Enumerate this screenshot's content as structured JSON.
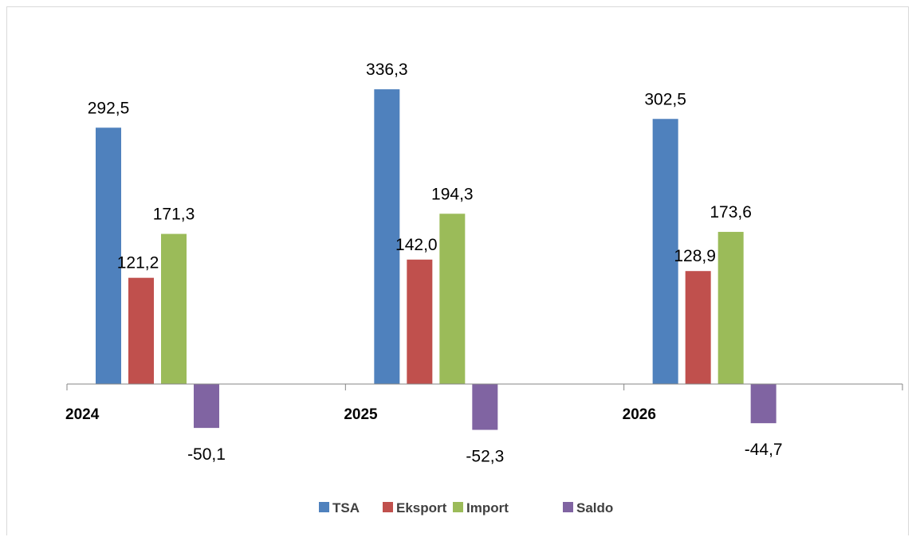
{
  "chart_data": {
    "type": "bar",
    "categories": [
      "2024",
      "2025",
      "2026"
    ],
    "series": [
      {
        "name": "TSA",
        "color": "#4f81bd",
        "values": [
          292.5,
          336.3,
          302.5
        ],
        "labels": [
          "292,5",
          "336,3",
          "302,5"
        ]
      },
      {
        "name": "Eksport",
        "color": "#c0504d",
        "values": [
          121.2,
          142.0,
          128.9
        ],
        "labels": [
          "121,2",
          "142,0",
          "128,9"
        ]
      },
      {
        "name": "Import",
        "color": "#9bbb59",
        "values": [
          171.3,
          194.3,
          173.6
        ],
        "labels": [
          "171,3",
          "194,3",
          "173,6"
        ]
      },
      {
        "name": "Saldo",
        "color": "#8064a2",
        "values": [
          -50.1,
          -52.3,
          -44.7
        ],
        "labels": [
          "-50,1",
          "-52,3",
          "-44,7"
        ]
      }
    ],
    "title": "",
    "xlabel": "",
    "ylabel": "",
    "legend_position": "bottom",
    "grid": false
  }
}
